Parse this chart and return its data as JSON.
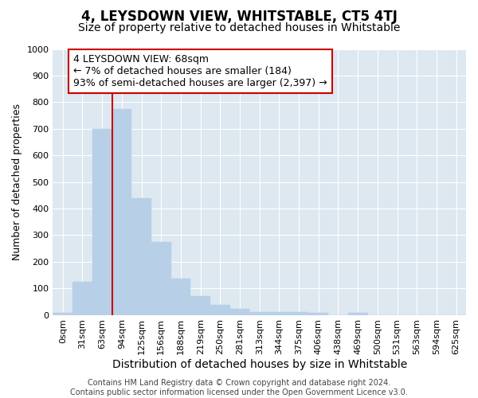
{
  "title": "4, LEYSDOWN VIEW, WHITSTABLE, CT5 4TJ",
  "subtitle": "Size of property relative to detached houses in Whitstable",
  "xlabel": "Distribution of detached houses by size in Whitstable",
  "ylabel": "Number of detached properties",
  "categories": [
    "0sqm",
    "31sqm",
    "63sqm",
    "94sqm",
    "125sqm",
    "156sqm",
    "188sqm",
    "219sqm",
    "250sqm",
    "281sqm",
    "313sqm",
    "344sqm",
    "375sqm",
    "406sqm",
    "438sqm",
    "469sqm",
    "500sqm",
    "531sqm",
    "563sqm",
    "594sqm",
    "625sqm"
  ],
  "values": [
    7,
    125,
    700,
    775,
    440,
    273,
    135,
    70,
    37,
    22,
    12,
    12,
    12,
    7,
    0,
    7,
    0,
    0,
    0,
    0,
    0
  ],
  "bar_color": "#b8cfe8",
  "bar_edge_color": "#b8cfe8",
  "vline_x": 2.5,
  "vline_color": "#cc0000",
  "annotation_text": "4 LEYSDOWN VIEW: 68sqm\n← 7% of detached houses are smaller (184)\n93% of semi-detached houses are larger (2,397) →",
  "annotation_box_facecolor": "#ffffff",
  "annotation_box_edgecolor": "#cc0000",
  "ylim": [
    0,
    1000
  ],
  "yticks": [
    0,
    100,
    200,
    300,
    400,
    500,
    600,
    700,
    800,
    900,
    1000
  ],
  "bg_color": "#ffffff",
  "plot_bg_color": "#dde8f0",
  "grid_color": "#ffffff",
  "footer_text": "Contains HM Land Registry data © Crown copyright and database right 2024.\nContains public sector information licensed under the Open Government Licence v3.0.",
  "title_fontsize": 12,
  "subtitle_fontsize": 10,
  "xlabel_fontsize": 10,
  "ylabel_fontsize": 9,
  "tick_fontsize": 8,
  "annotation_fontsize": 9,
  "footer_fontsize": 7
}
